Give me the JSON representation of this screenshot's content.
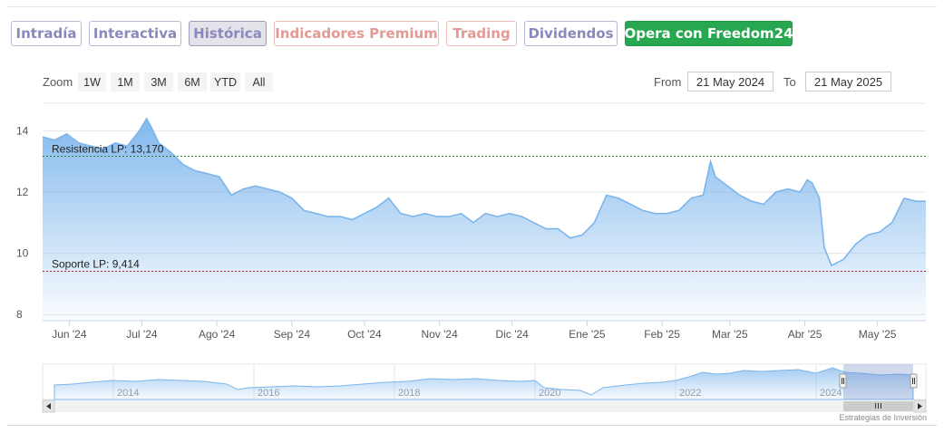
{
  "tabs": [
    {
      "label": "Intradía",
      "text_color": "#8b88bb",
      "border_color": "#b9b7d6",
      "bg": "#ffffff"
    },
    {
      "label": "Interactiva",
      "text_color": "#8b88bb",
      "border_color": "#b9b7d6",
      "bg": "#ffffff"
    },
    {
      "label": "Histórica",
      "text_color": "#8b88bb",
      "border_color": "#9e9cb8",
      "bg": "#e4e3ea"
    },
    {
      "label": "Indicadores Premium",
      "text_color": "#e39a94",
      "border_color": "#efbcb8",
      "bg": "#ffffff"
    },
    {
      "label": "Trading",
      "text_color": "#e39a94",
      "border_color": "#efbcb8",
      "bg": "#ffffff"
    },
    {
      "label": "Dividendos",
      "text_color": "#8b88bb",
      "border_color": "#b9b7d6",
      "bg": "#ffffff"
    },
    {
      "label": "Opera con Freedom24",
      "text_color": "#ffffff",
      "border_color": "#1f9e47",
      "bg": "#27a74f"
    }
  ],
  "range_selector": {
    "zoom_label": "Zoom",
    "buttons": [
      "1W",
      "1M",
      "3M",
      "6M",
      "YTD",
      "All"
    ],
    "from_label": "From",
    "from_value": "21 May 2024",
    "to_label": "To",
    "to_value": "21 May 2025"
  },
  "credit": "Estrategias de Inversión",
  "chart_data": {
    "type": "area",
    "series_color": "#7cb5ec",
    "x_range": [
      "2024-05-21",
      "2025-05-21"
    ],
    "y_range": [
      7.8,
      14.9
    ],
    "y_ticks": [
      8,
      10,
      12,
      14
    ],
    "y_tick_labels": [
      "8",
      "10",
      "12",
      "14"
    ],
    "x_tick_labels": [
      "Jun '24",
      "Jul '24",
      "Ago '24",
      "Sep '24",
      "Oct '24",
      "Nov '24",
      "Dic '24",
      "Ene '25",
      "Feb '25",
      "Mar '25",
      "Abr '25",
      "May '25"
    ],
    "x_tick_dates": [
      "2024-06-01",
      "2024-07-01",
      "2024-08-01",
      "2024-09-01",
      "2024-10-01",
      "2024-11-01",
      "2024-12-01",
      "2025-01-01",
      "2025-02-01",
      "2025-03-01",
      "2025-04-01",
      "2025-05-01"
    ],
    "grid": true,
    "lines": [
      {
        "label": "Resistencia LP: 13,170",
        "value": 13.17,
        "color": "#2e7d32"
      },
      {
        "label": "Soporte LP: 9,414",
        "value": 9.414,
        "color": "#b71c1c"
      }
    ],
    "series": [
      {
        "dates": [
          "2024-05-21",
          "2024-05-26",
          "2024-05-31",
          "2024-06-05",
          "2024-06-10",
          "2024-06-15",
          "2024-06-20",
          "2024-06-25",
          "2024-06-30",
          "2024-07-03",
          "2024-07-05",
          "2024-07-08",
          "2024-07-13",
          "2024-07-18",
          "2024-07-23",
          "2024-07-28",
          "2024-08-02",
          "2024-08-07",
          "2024-08-12",
          "2024-08-17",
          "2024-08-22",
          "2024-08-27",
          "2024-09-01",
          "2024-09-06",
          "2024-09-11",
          "2024-09-16",
          "2024-09-21",
          "2024-09-26",
          "2024-10-01",
          "2024-10-06",
          "2024-10-11",
          "2024-10-16",
          "2024-10-21",
          "2024-10-26",
          "2024-10-31",
          "2024-11-05",
          "2024-11-10",
          "2024-11-15",
          "2024-11-20",
          "2024-11-25",
          "2024-11-30",
          "2024-12-05",
          "2024-12-10",
          "2024-12-15",
          "2024-12-20",
          "2024-12-25",
          "2024-12-30",
          "2025-01-04",
          "2025-01-09",
          "2025-01-14",
          "2025-01-19",
          "2025-01-24",
          "2025-01-29",
          "2025-02-03",
          "2025-02-08",
          "2025-02-13",
          "2025-02-18",
          "2025-02-21",
          "2025-02-23",
          "2025-02-28",
          "2025-03-05",
          "2025-03-10",
          "2025-03-15",
          "2025-03-20",
          "2025-03-25",
          "2025-03-30",
          "2025-04-02",
          "2025-04-04",
          "2025-04-07",
          "2025-04-09",
          "2025-04-12",
          "2025-04-17",
          "2025-04-22",
          "2025-04-27",
          "2025-05-02",
          "2025-05-07",
          "2025-05-12",
          "2025-05-17",
          "2025-05-21"
        ],
        "values": [
          13.8,
          13.7,
          13.9,
          13.6,
          13.5,
          13.4,
          13.6,
          13.5,
          14.0,
          14.4,
          14.1,
          13.6,
          13.3,
          12.9,
          12.7,
          12.6,
          12.5,
          11.9,
          12.1,
          12.2,
          12.1,
          12.0,
          11.8,
          11.4,
          11.3,
          11.2,
          11.2,
          11.1,
          11.3,
          11.5,
          11.8,
          11.3,
          11.2,
          11.3,
          11.2,
          11.2,
          11.3,
          11.0,
          11.3,
          11.2,
          11.3,
          11.2,
          11.0,
          10.8,
          10.8,
          10.5,
          10.6,
          11.0,
          11.9,
          11.8,
          11.6,
          11.4,
          11.3,
          11.3,
          11.4,
          11.8,
          11.9,
          13.0,
          12.5,
          12.2,
          11.9,
          11.7,
          11.6,
          12.0,
          12.1,
          12.0,
          12.4,
          12.3,
          11.8,
          10.2,
          9.6,
          9.8,
          10.3,
          10.6,
          10.7,
          11.0,
          11.8,
          11.7,
          11.7
        ]
      }
    ],
    "navigator": {
      "x_tick_labels": [
        "2014",
        "2016",
        "2018",
        "2020",
        "2022",
        "2024"
      ]
    }
  }
}
